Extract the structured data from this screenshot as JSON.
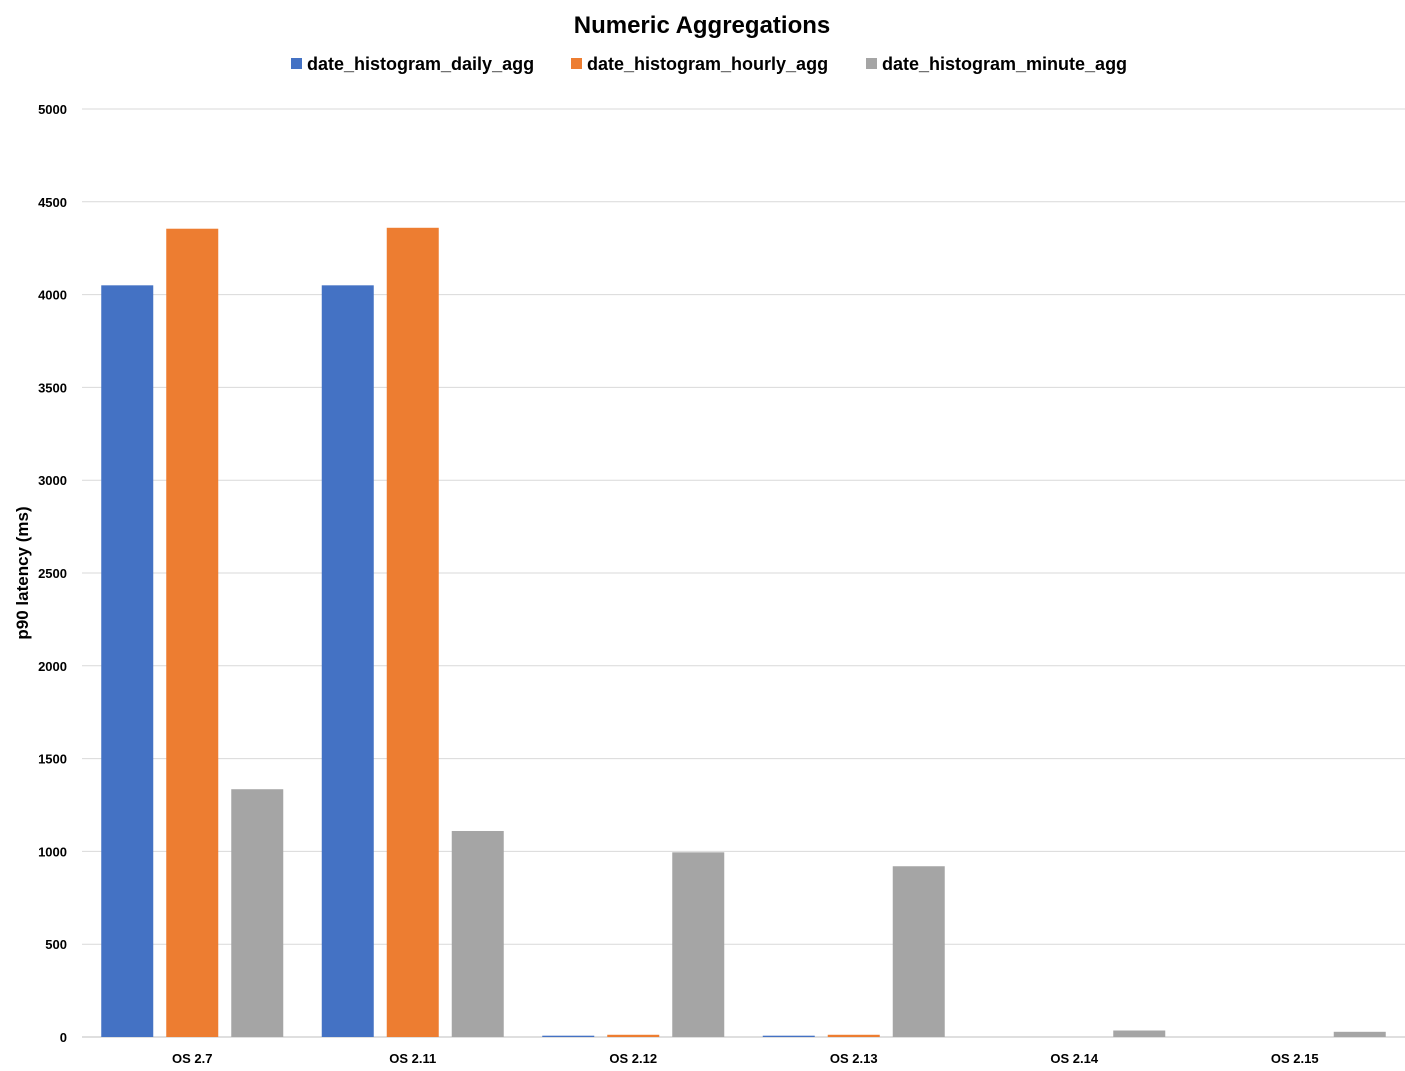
{
  "chart_data": {
    "type": "bar",
    "title": "Numeric Aggregations",
    "xlabel": "",
    "ylabel": "p90 latency (ms)",
    "ylim": [
      0,
      5000
    ],
    "yticks": [
      0,
      500,
      1000,
      1500,
      2000,
      2500,
      3000,
      3500,
      4000,
      4500,
      5000
    ],
    "grid": true,
    "legend_position": "top",
    "categories": [
      "OS 2.7",
      "OS 2.11",
      "OS 2.12",
      "OS 2.13",
      "OS 2.14",
      "OS 2.15"
    ],
    "series": [
      {
        "name": "date_histogram_daily_agg",
        "color": "#4472c4",
        "values": [
          4050,
          4050,
          7,
          7,
          0,
          0
        ]
      },
      {
        "name": "date_histogram_hourly_agg",
        "color": "#ed7d31",
        "values": [
          4355,
          4360,
          12,
          12,
          0,
          0
        ]
      },
      {
        "name": "date_histogram_minute_agg",
        "color": "#a5a5a5",
        "values": [
          1335,
          1110,
          995,
          920,
          35,
          28
        ]
      }
    ]
  }
}
